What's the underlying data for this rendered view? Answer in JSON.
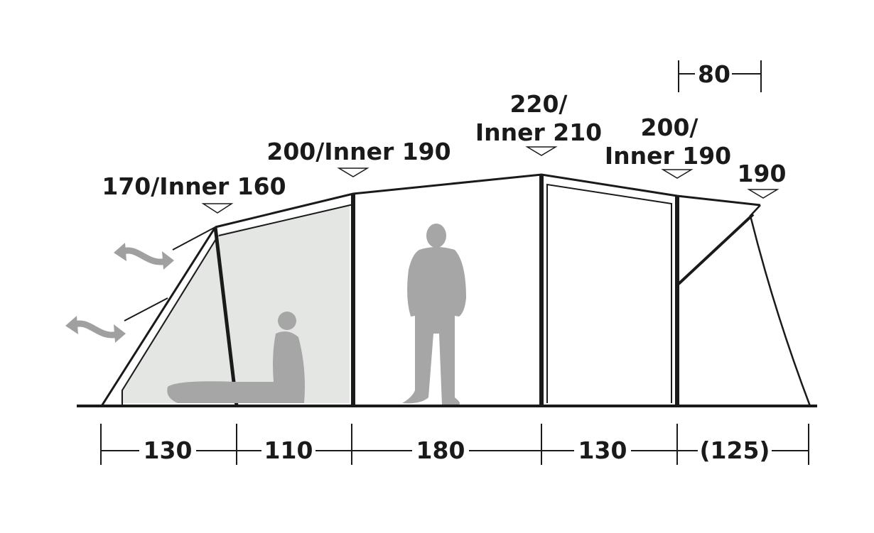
{
  "height_labels": [
    {
      "lines": [
        "170/Inner 160"
      ]
    },
    {
      "lines": [
        "200/Inner 190"
      ]
    },
    {
      "lines": [
        "220/",
        "Inner 210"
      ]
    },
    {
      "lines": [
        "200/",
        "Inner 190"
      ]
    },
    {
      "lines": [
        "190"
      ]
    }
  ],
  "top_dimension": "80",
  "bottom_dimensions": [
    "130",
    "110",
    "180",
    "130",
    "(125)"
  ],
  "colors": {
    "line": "#1a1a1a",
    "inner_fill": "#e4e6e4",
    "figure": "#a6a6a6"
  }
}
